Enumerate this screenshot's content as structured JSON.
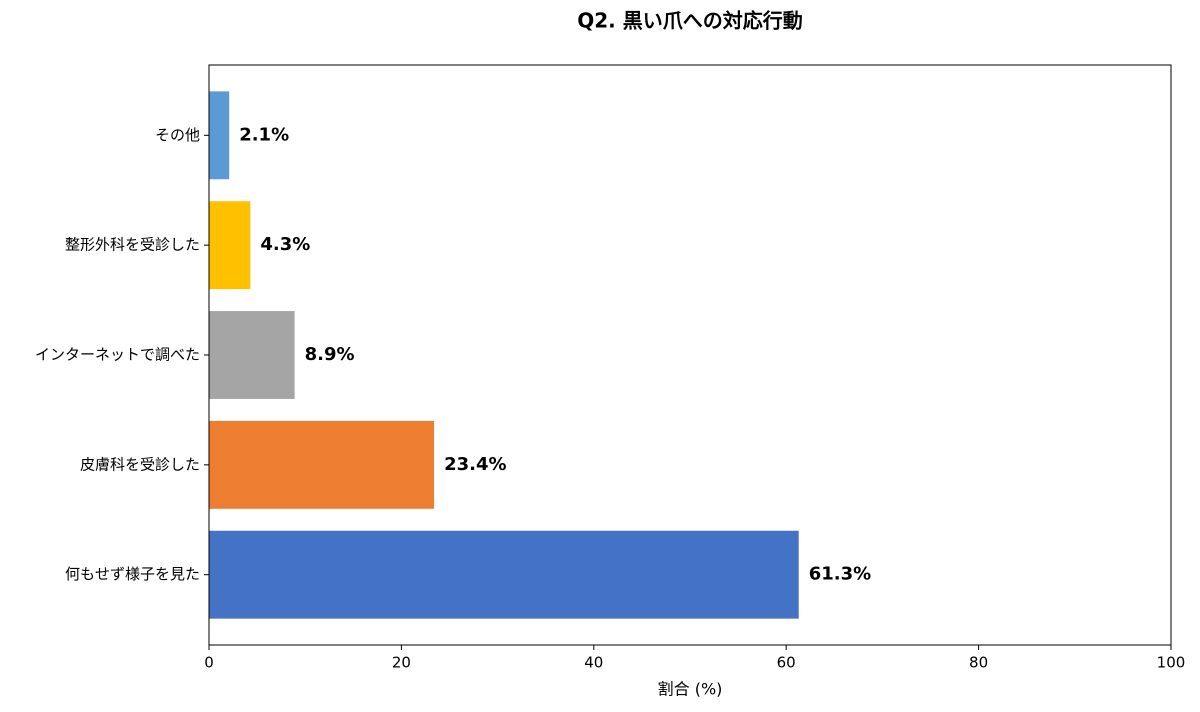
{
  "chart_data": {
    "type": "barh",
    "title": "Q2. 黒い爪への対応行動",
    "x_label": "割合 (%)",
    "categories": [
      "その他",
      "整形外科を受診した",
      "インターネットで調べた",
      "皮膚科を受診した",
      "何もせず様子を見た"
    ],
    "values": [
      2.1,
      4.3,
      8.9,
      23.4,
      61.3
    ],
    "value_labels": [
      "2.1%",
      "4.3%",
      "8.9%",
      "23.4%",
      "61.3%"
    ],
    "colors": [
      "#5b9bd5",
      "#ffc000",
      "#a5a5a5",
      "#ed7d31",
      "#4472c4"
    ],
    "xlim": [
      0,
      100
    ],
    "xticks": [
      0,
      20,
      40,
      60,
      80,
      100
    ],
    "grid": false
  }
}
